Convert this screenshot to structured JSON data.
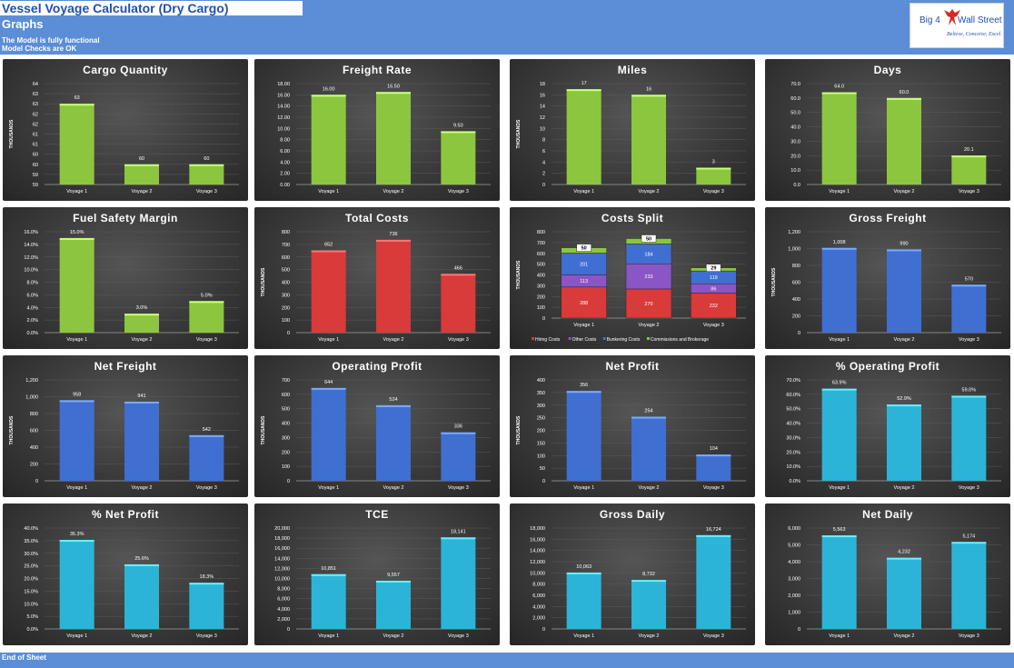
{
  "header": {
    "title": "Vessel Voyage Calculator (Dry Cargo)",
    "subtitle": "Graphs",
    "note1": "The Model is fully functional",
    "note2": "Model Checks are OK",
    "logo": {
      "part1": "Big 4",
      "part2": "Wall Street",
      "tagline": "Believe, Conceive, Excel"
    }
  },
  "footer": {
    "text": "End of Sheet"
  },
  "colors": {
    "header": "#5b8ed6",
    "green": "#8cc63f",
    "red": "#d93a3a",
    "blue": "#3f6fd1",
    "cyan": "#2cb4d8",
    "purple": "#8a55c4"
  },
  "chart_data": [
    {
      "type": "bar",
      "title": "Cargo Quantity",
      "ylabel": "THOUSANDS",
      "color": "green",
      "categories": [
        "Voyage 1",
        "Voyage 2",
        "Voyage 3"
      ],
      "values": [
        63,
        60,
        60
      ],
      "labels": [
        "63",
        "60",
        "60"
      ],
      "ylim": [
        59,
        64
      ],
      "ticks": [
        "59",
        "59",
        "60",
        "60",
        "61",
        "61",
        "62",
        "62",
        "63",
        "63",
        "64"
      ]
    },
    {
      "type": "bar",
      "title": "Freight Rate",
      "ylabel": "",
      "color": "green",
      "categories": [
        "Voyage 1",
        "Voyage 2",
        "Voyage 3"
      ],
      "values": [
        16.0,
        16.5,
        9.5
      ],
      "labels": [
        "16.00",
        "16.50",
        "9.50"
      ],
      "ylim": [
        0,
        18
      ],
      "ticks": [
        "0.00",
        "2.00",
        "4.00",
        "6.00",
        "8.00",
        "10.00",
        "12.00",
        "14.00",
        "16.00",
        "18.00"
      ]
    },
    {
      "type": "bar",
      "title": "Miles",
      "ylabel": "THOUSANDS",
      "color": "green",
      "categories": [
        "Voyage 1",
        "Voyage 2",
        "Voyage 3"
      ],
      "values": [
        17,
        16,
        3
      ],
      "labels": [
        "17",
        "16",
        "3"
      ],
      "ylim": [
        0,
        18
      ],
      "ticks": [
        "0",
        "2",
        "4",
        "6",
        "8",
        "10",
        "12",
        "14",
        "16",
        "18"
      ]
    },
    {
      "type": "bar",
      "title": "Days",
      "ylabel": "",
      "color": "green",
      "categories": [
        "Voyage 1",
        "Voyage 2",
        "Voyage 3"
      ],
      "values": [
        64.0,
        60.0,
        20.1
      ],
      "labels": [
        "64.0",
        "60.0",
        "20.1"
      ],
      "ylim": [
        0,
        70
      ],
      "ticks": [
        "0.0",
        "10.0",
        "20.0",
        "30.0",
        "40.0",
        "50.0",
        "60.0",
        "70.0"
      ]
    },
    {
      "type": "bar",
      "title": "Fuel Safety Margin",
      "ylabel": "",
      "color": "green",
      "categories": [
        "Voyage 1",
        "Voyage 2",
        "Voyage 3"
      ],
      "values": [
        15.0,
        3.0,
        5.0
      ],
      "labels": [
        "15.0%",
        "3.0%",
        "5.0%"
      ],
      "ylim": [
        0,
        16
      ],
      "ticks": [
        "0.0%",
        "2.0%",
        "4.0%",
        "6.0%",
        "8.0%",
        "10.0%",
        "12.0%",
        "14.0%",
        "16.0%"
      ]
    },
    {
      "type": "bar",
      "title": "Total Costs",
      "ylabel": "THOUSANDS",
      "color": "red",
      "categories": [
        "Voyage 1",
        "Voyage 2",
        "Voyage 3"
      ],
      "values": [
        652,
        736,
        466
      ],
      "labels": [
        "652",
        "736",
        "466"
      ],
      "ylim": [
        0,
        800
      ],
      "ticks": [
        "0",
        "100",
        "200",
        "300",
        "400",
        "500",
        "600",
        "700",
        "800"
      ]
    },
    {
      "type": "stacked-bar",
      "title": "Costs Split",
      "ylabel": "THOUSANDS",
      "categories": [
        "Voyage 1",
        "Voyage 2",
        "Voyage 3"
      ],
      "ylim": [
        0,
        800
      ],
      "ticks": [
        "0",
        "100",
        "200",
        "300",
        "400",
        "500",
        "600",
        "700",
        "800"
      ],
      "series": [
        {
          "name": "Hiring Costs",
          "color": "red",
          "values": [
            288,
            270,
            232
          ],
          "labels": [
            "288",
            "270",
            "232"
          ]
        },
        {
          "name": "Other Costs",
          "color": "purple",
          "values": [
            113,
            233,
            86
          ],
          "labels": [
            "113",
            "233",
            "86"
          ]
        },
        {
          "name": "Bunkering Costs",
          "color": "blue",
          "values": [
            201,
            184,
            119
          ],
          "labels": [
            "201",
            "184",
            "119"
          ]
        },
        {
          "name": "Commissions and Brokerage",
          "color": "green",
          "values": [
            50,
            50,
            29
          ],
          "labels": [
            "50",
            "50",
            "29"
          ]
        }
      ]
    },
    {
      "type": "bar",
      "title": "Gross Freight",
      "ylabel": "THOUSANDS",
      "color": "blue",
      "categories": [
        "Voyage 1",
        "Voyage 2",
        "Voyage 3"
      ],
      "values": [
        1008,
        990,
        570
      ],
      "labels": [
        "1,008",
        "990",
        "570"
      ],
      "ylim": [
        0,
        1200
      ],
      "ticks": [
        "0",
        "200",
        "400",
        "600",
        "800",
        "1,000",
        "1,200"
      ]
    },
    {
      "type": "bar",
      "title": "Net Freight",
      "ylabel": "THOUSANDS",
      "color": "blue",
      "categories": [
        "Voyage 1",
        "Voyage 2",
        "Voyage 3"
      ],
      "values": [
        958,
        941,
        542
      ],
      "labels": [
        "958",
        "941",
        "542"
      ],
      "ylim": [
        0,
        1200
      ],
      "ticks": [
        "0",
        "200",
        "400",
        "600",
        "800",
        "1,000",
        "1,200"
      ]
    },
    {
      "type": "bar",
      "title": "Operating Profit",
      "ylabel": "THOUSANDS",
      "color": "blue",
      "categories": [
        "Voyage 1",
        "Voyage 2",
        "Voyage 3"
      ],
      "values": [
        644,
        524,
        336
      ],
      "labels": [
        "644",
        "524",
        "336"
      ],
      "ylim": [
        0,
        700
      ],
      "ticks": [
        "0",
        "100",
        "200",
        "300",
        "400",
        "500",
        "600",
        "700"
      ]
    },
    {
      "type": "bar",
      "title": "Net Profit",
      "ylabel": "THOUSANDS",
      "color": "blue",
      "categories": [
        "Voyage 1",
        "Voyage 2",
        "Voyage 3"
      ],
      "values": [
        356,
        254,
        104
      ],
      "labels": [
        "356",
        "254",
        "104"
      ],
      "ylim": [
        0,
        400
      ],
      "ticks": [
        "0",
        "50",
        "100",
        "150",
        "200",
        "250",
        "300",
        "350",
        "400"
      ]
    },
    {
      "type": "bar",
      "title": "% Operating Profit",
      "ylabel": "",
      "color": "cyan",
      "categories": [
        "Voyage 1",
        "Voyage 2",
        "Voyage 3"
      ],
      "values": [
        63.9,
        52.9,
        59.0
      ],
      "labels": [
        "63.9%",
        "52.9%",
        "59.0%"
      ],
      "ylim": [
        0,
        70
      ],
      "ticks": [
        "0.0%",
        "10.0%",
        "20.0%",
        "30.0%",
        "40.0%",
        "50.0%",
        "60.0%",
        "70.0%"
      ]
    },
    {
      "type": "bar",
      "title": "% Net Profit",
      "ylabel": "",
      "color": "cyan",
      "categories": [
        "Voyage 1",
        "Voyage 2",
        "Voyage 3"
      ],
      "values": [
        35.3,
        25.6,
        18.3
      ],
      "labels": [
        "35.3%",
        "25.6%",
        "18.3%"
      ],
      "ylim": [
        0,
        40
      ],
      "ticks": [
        "0.0%",
        "5.0%",
        "10.0%",
        "15.0%",
        "20.0%",
        "25.0%",
        "30.0%",
        "35.0%",
        "40.0%"
      ]
    },
    {
      "type": "bar",
      "title": "TCE",
      "ylabel": "",
      "color": "cyan",
      "categories": [
        "Voyage 1",
        "Voyage 2",
        "Voyage 3"
      ],
      "values": [
        10851,
        9557,
        18141
      ],
      "labels": [
        "10,851",
        "9,557",
        "18,141"
      ],
      "ylim": [
        0,
        20000
      ],
      "ticks": [
        "0",
        "2,000",
        "4,000",
        "6,000",
        "8,000",
        "10,000",
        "12,000",
        "14,000",
        "16,000",
        "18,000",
        "20,000"
      ]
    },
    {
      "type": "bar",
      "title": "Gross Daily",
      "ylabel": "",
      "color": "cyan",
      "categories": [
        "Voyage 1",
        "Voyage 2",
        "Voyage 3"
      ],
      "values": [
        10063,
        8732,
        16724
      ],
      "labels": [
        "10,063",
        "8,732",
        "16,724"
      ],
      "ylim": [
        0,
        18000
      ],
      "ticks": [
        "0",
        "2,000",
        "4,000",
        "6,000",
        "8,000",
        "10,000",
        "12,000",
        "14,000",
        "16,000",
        "18,000"
      ]
    },
    {
      "type": "bar",
      "title": "Net Daily",
      "ylabel": "",
      "color": "cyan",
      "categories": [
        "Voyage 1",
        "Voyage 2",
        "Voyage 3"
      ],
      "values": [
        5563,
        4232,
        5174
      ],
      "labels": [
        "5,563",
        "4,232",
        "5,174"
      ],
      "ylim": [
        0,
        6000
      ],
      "ticks": [
        "0",
        "1,000",
        "2,000",
        "3,000",
        "4,000",
        "5,000",
        "6,000"
      ]
    }
  ]
}
